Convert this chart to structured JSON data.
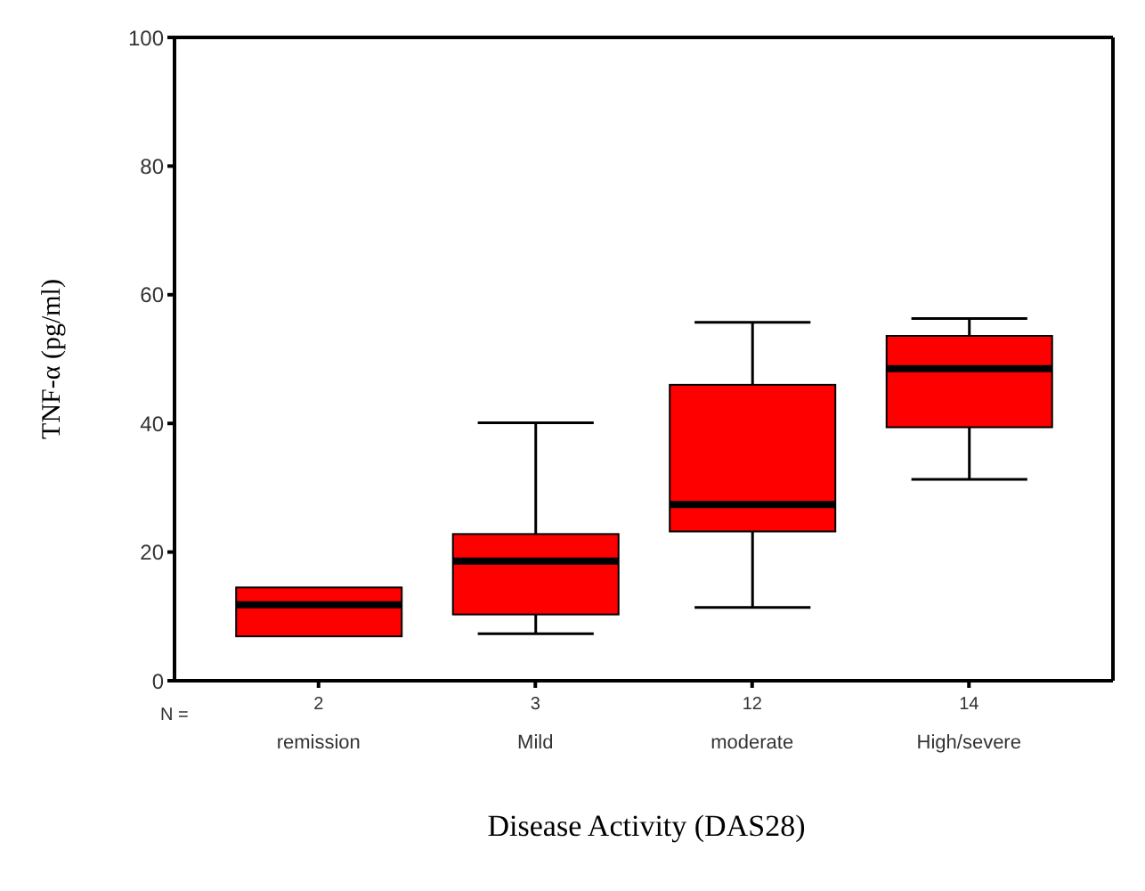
{
  "chart_data": {
    "type": "box",
    "xlabel": "Disease Activity (DAS28)",
    "ylabel": "TNF-α (pg/ml)",
    "categories": [
      "remission",
      "Mild",
      "moderate",
      "High/severe"
    ],
    "color": "#ff0000",
    "boxes": [
      {
        "low": 6.9,
        "q1": 6.9,
        "median": 11.8,
        "q3": 14.5,
        "high": 14.5
      },
      {
        "low": 7.3,
        "q1": 10.3,
        "median": 18.6,
        "q3": 22.8,
        "high": 40.1
      },
      {
        "low": 11.4,
        "q1": 23.2,
        "median": 27.4,
        "q3": 46.0,
        "high": 55.7
      },
      {
        "low": 31.3,
        "q1": 39.4,
        "median": 48.5,
        "q3": 53.6,
        "high": 56.3
      }
    ],
    "ylim": [
      0,
      100
    ],
    "yticks": [
      0,
      20,
      40,
      60,
      80,
      100
    ],
    "annotations": [
      "N =",
      {
        "text": "2",
        "x": "remission"
      },
      {
        "text": "3",
        "x": "Mild"
      },
      {
        "text": "12",
        "x": "moderate"
      },
      {
        "text": "14",
        "x": "High/severe"
      }
    ]
  }
}
